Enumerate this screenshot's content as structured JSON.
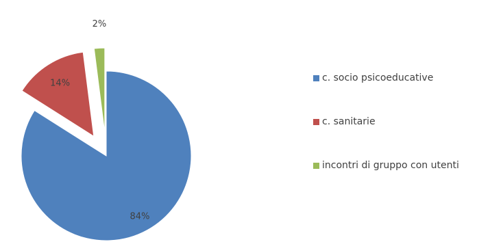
{
  "chart_data": {
    "type": "pie",
    "title": "",
    "categories": [
      "c. socio psicoeducative",
      "c. sanitarie",
      "incontri di gruppo con utenti"
    ],
    "values": [
      84,
      14,
      2
    ],
    "data_labels": [
      "84%",
      "14%",
      "2%"
    ],
    "colors": [
      "#4f81bd",
      "#c0504d",
      "#9bbb59"
    ],
    "exploded": true,
    "legend_position": "right"
  }
}
